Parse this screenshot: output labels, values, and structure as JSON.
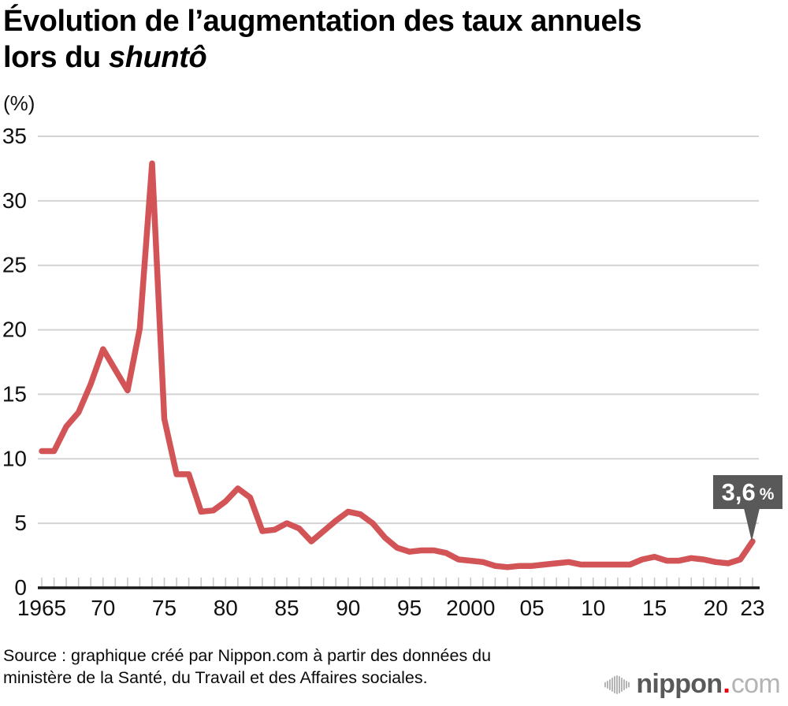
{
  "title": {
    "line1": "Évolution de l’augmentation des taux annuels",
    "line2_prefix": "lors du ",
    "line2_italic": "shuntô"
  },
  "chart_data": {
    "type": "line",
    "unit_label": "(%)",
    "x_start_year": 1965,
    "x_end_year": 2023,
    "years": [
      1965,
      1966,
      1967,
      1968,
      1969,
      1970,
      1971,
      1972,
      1973,
      1974,
      1975,
      1976,
      1977,
      1978,
      1979,
      1980,
      1981,
      1982,
      1983,
      1984,
      1985,
      1986,
      1987,
      1988,
      1989,
      1990,
      1991,
      1992,
      1993,
      1994,
      1995,
      1996,
      1997,
      1998,
      1999,
      2000,
      2001,
      2002,
      2003,
      2004,
      2005,
      2006,
      2007,
      2008,
      2009,
      2010,
      2011,
      2012,
      2013,
      2014,
      2015,
      2016,
      2017,
      2018,
      2019,
      2020,
      2021,
      2022,
      2023
    ],
    "values": [
      10.6,
      10.6,
      12.5,
      13.6,
      15.8,
      18.5,
      16.9,
      15.3,
      20.1,
      32.9,
      13.1,
      8.8,
      8.8,
      5.9,
      6.0,
      6.7,
      7.7,
      7.0,
      4.4,
      4.5,
      5.0,
      4.6,
      3.6,
      4.4,
      5.2,
      5.9,
      5.7,
      5.0,
      3.9,
      3.1,
      2.8,
      2.9,
      2.9,
      2.7,
      2.2,
      2.1,
      2.0,
      1.7,
      1.6,
      1.7,
      1.7,
      1.8,
      1.9,
      2.0,
      1.8,
      1.8,
      1.8,
      1.8,
      1.8,
      2.2,
      2.4,
      2.1,
      2.1,
      2.3,
      2.2,
      2.0,
      1.9,
      2.2,
      3.6
    ],
    "ylim": [
      0,
      35
    ],
    "yticks": [
      0,
      5,
      10,
      15,
      20,
      25,
      30,
      35
    ],
    "xticks": [
      {
        "year": 1965,
        "label": "1965"
      },
      {
        "year": 1970,
        "label": "70"
      },
      {
        "year": 1975,
        "label": "75"
      },
      {
        "year": 1980,
        "label": "80"
      },
      {
        "year": 1985,
        "label": "85"
      },
      {
        "year": 1990,
        "label": "90"
      },
      {
        "year": 1995,
        "label": "95"
      },
      {
        "year": 2000,
        "label": "2000"
      },
      {
        "year": 2005,
        "label": "05"
      },
      {
        "year": 2010,
        "label": "10"
      },
      {
        "year": 2015,
        "label": "15"
      },
      {
        "year": 2020,
        "label": "20"
      },
      {
        "year": 2023,
        "label": "23"
      }
    ],
    "grid": "horizontal-only",
    "legend": "none",
    "annotation": {
      "year": 2023,
      "value": 3.6,
      "label_value": "3,6",
      "label_unit": "%"
    }
  },
  "source": {
    "line1": "Source : graphique créé par Nippon.com à partir des données du",
    "line2": "ministère de la Santé, du Travail et des Affaires sociales."
  },
  "logo": {
    "name": "nippon",
    "dot": ".",
    "tld": "com"
  },
  "colors": {
    "line": "#d25456",
    "grid": "#d3d3d3",
    "tick": "#c8c8c8",
    "axis": "#1a1a1a",
    "text": "#111111",
    "callout_bg": "#595959",
    "callout_text": "#ffffff",
    "logo_dark": "#595959",
    "logo_light": "#b4b4b4",
    "logo_red": "#e60012"
  }
}
